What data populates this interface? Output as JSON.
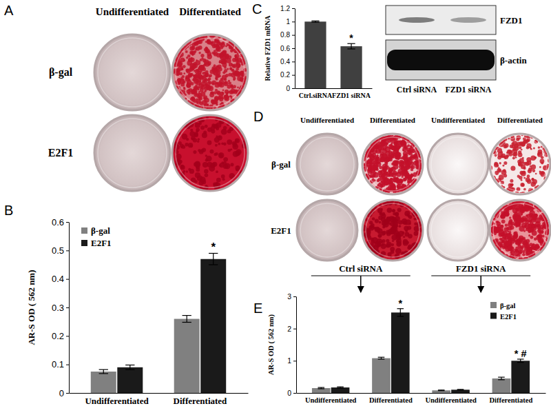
{
  "panel_labels": [
    "A",
    "B",
    "C",
    "D",
    "E"
  ],
  "dishes_A": {
    "columns": [
      "Undifferentiated",
      "Differentiated"
    ],
    "rows": [
      "β-gal",
      "E2F1"
    ]
  },
  "dishes_D": {
    "columns": [
      "Undifferentiated",
      "Differentiated",
      "Undifferentiated",
      "Differentiated"
    ],
    "rows": [
      "β-gal",
      "E2F1"
    ]
  },
  "blot": {
    "bands": [
      "FZD1",
      "β-actin"
    ],
    "lanes": [
      "Ctrl siRNA",
      "FZD1 siRNA"
    ]
  },
  "chart_data": [
    {
      "type": "bar",
      "y_label": "AR-S OD ( 562 nm)",
      "categories": [
        "Undifferentiated",
        "Differentiated"
      ],
      "series": [
        {
          "name": "β-gal",
          "color": "#808080",
          "values": [
            0.075,
            0.26
          ],
          "errors": [
            0.007,
            0.012
          ]
        },
        {
          "name": "E2F1",
          "color": "#1a1a1a",
          "values": [
            0.09,
            0.47
          ],
          "errors": [
            0.008,
            0.02
          ]
        }
      ],
      "ylim": [
        0,
        0.6
      ],
      "yticks": [
        0,
        0.1,
        0.2,
        0.3,
        0.4,
        0.5,
        0.6
      ],
      "legend": "top-left",
      "annotations": [
        {
          "text": "*",
          "series": 1,
          "category": 1
        }
      ]
    },
    {
      "type": "bar",
      "y_label": "Relative FZD1 mRNA",
      "categories": [
        "Ctrl.siRNA",
        "FZD1 siRNA"
      ],
      "values": [
        1.0,
        0.63
      ],
      "errors": [
        0.01,
        0.04
      ],
      "color": "#404040",
      "ylim": [
        0,
        1.2
      ],
      "yticks": [
        0,
        0.2,
        0.4,
        0.6,
        0.8,
        1,
        1.2
      ],
      "annotations": [
        {
          "text": "*",
          "category": 1
        }
      ]
    },
    {
      "type": "bar",
      "y_label": "AR-S OD ( 562 nm)",
      "categories": [
        "Undifferentiated",
        "Differentiated",
        "Undifferentiated",
        "Differentiated"
      ],
      "groups": [
        "Ctrl siRNA",
        "FZD1 siRNA"
      ],
      "series": [
        {
          "name": "β-gal",
          "color": "#808080",
          "values": [
            0.15,
            1.08,
            0.08,
            0.45
          ],
          "errors": [
            0.02,
            0.03,
            0.01,
            0.04
          ]
        },
        {
          "name": "E2F1",
          "color": "#1a1a1a",
          "values": [
            0.17,
            2.5,
            0.1,
            1.0
          ],
          "errors": [
            0.02,
            0.12,
            0.01,
            0.05
          ]
        }
      ],
      "ylim": [
        0,
        3
      ],
      "yticks": [
        0,
        1,
        2,
        3
      ],
      "legend": "top-right",
      "annotations": [
        {
          "text": "*",
          "series": 1,
          "category": 1
        },
        {
          "text": "* #",
          "series": 1,
          "category": 3
        }
      ]
    }
  ]
}
